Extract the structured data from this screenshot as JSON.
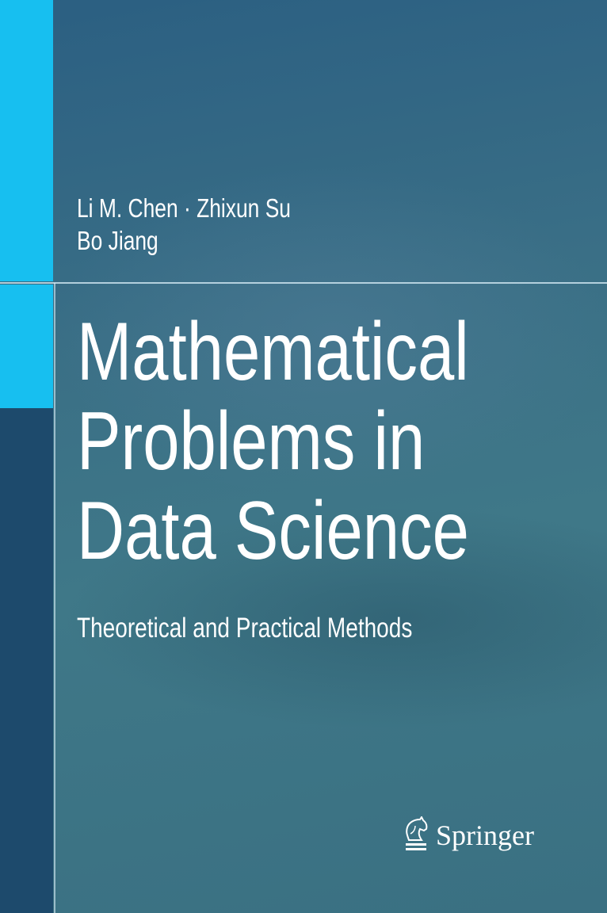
{
  "authors": [
    "Li M. Chen · Zhixun Su",
    "Bo Jiang"
  ],
  "title_lines": [
    "Mathematical",
    "Problems in",
    "Data Science"
  ],
  "subtitle": "Theoretical and Practical Methods",
  "publisher": {
    "name": "Springer",
    "icon": "springer-knight-icon"
  },
  "colors": {
    "accent": "#17bff0",
    "background": "#3a6f86",
    "strip": "#1d4a6c"
  }
}
